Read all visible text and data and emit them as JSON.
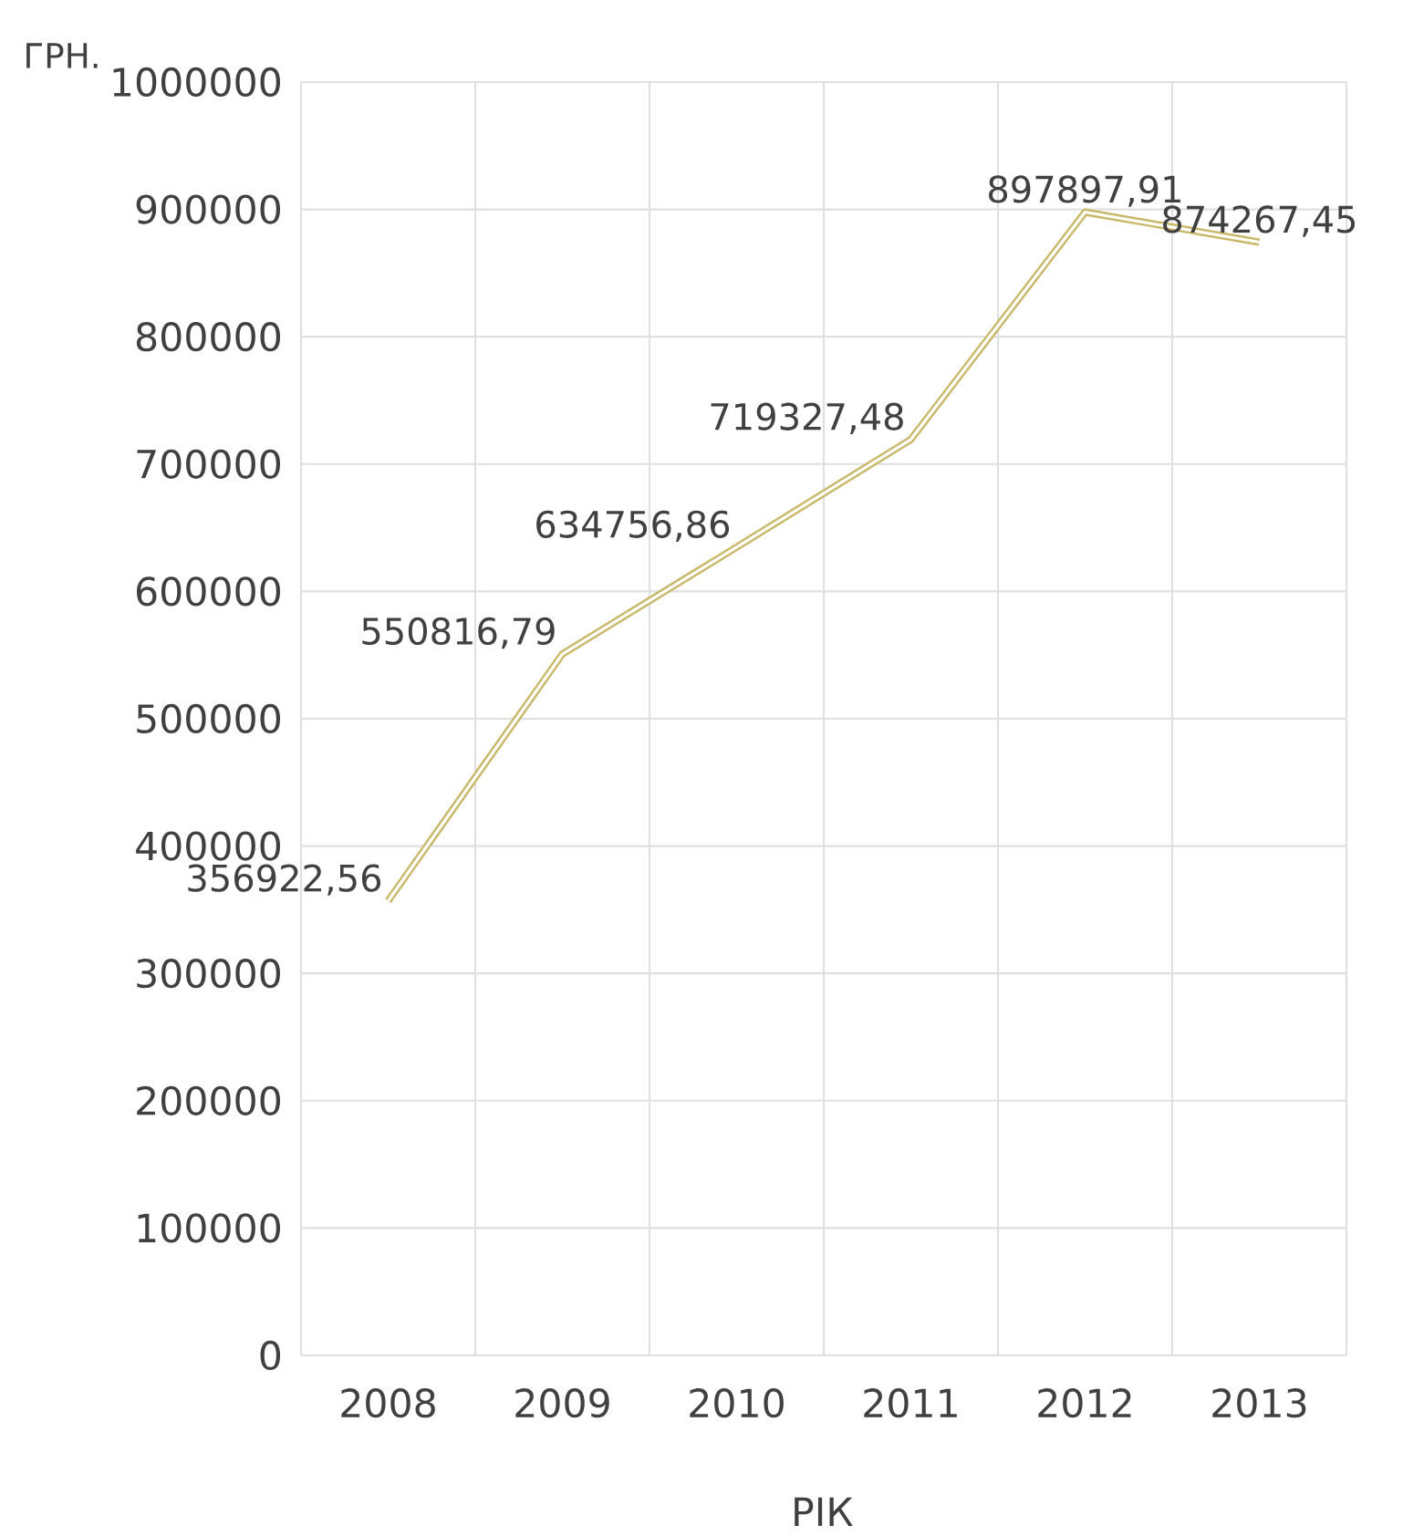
{
  "chart_data": {
    "type": "line",
    "ylabel": "ГРН.",
    "xlabel": "РІК",
    "categories": [
      "2008",
      "2009",
      "2010",
      "2011",
      "2012",
      "2013"
    ],
    "values": [
      356922.56,
      550816.79,
      634756.86,
      719327.48,
      897897.91,
      874267.45
    ],
    "value_labels": [
      "356922,56",
      "550816,79",
      "634756,86",
      "719327,48",
      "897897,91",
      "874267,45"
    ],
    "color": "#c9b86a",
    "grid": true,
    "ylim": [
      0,
      1000000
    ],
    "yticks": [
      0,
      100000,
      200000,
      300000,
      400000,
      500000,
      600000,
      700000,
      800000,
      900000,
      1000000
    ]
  }
}
